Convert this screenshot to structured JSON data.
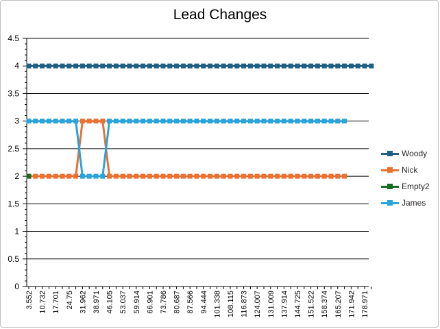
{
  "chart_data": {
    "type": "line",
    "title": "Lead Changes",
    "xlabel": "",
    "ylabel": "",
    "ylim": [
      0,
      4.5
    ],
    "y_ticks": [
      "0",
      "0.5",
      "1",
      "1.5",
      "2",
      "2.5",
      "3",
      "3.5",
      "4",
      "4.5"
    ],
    "x_tick_labels": [
      "3.552",
      "10.732",
      "17.701",
      "24.75",
      "31.962",
      "38.971",
      "46.105",
      "53.037",
      "59.914",
      "66.901",
      "73.786",
      "80.687",
      "87.566",
      "94.444",
      "101.338",
      "108.115",
      "116.873",
      "124.007",
      "131.009",
      "137.914",
      "144.725",
      "151.522",
      "158.374",
      "165.207",
      "171.942",
      "178.971"
    ],
    "grid": true,
    "legend_position": "right",
    "series": [
      {
        "name": "Woody",
        "color": "#1f5f83",
        "values": [
          4,
          4,
          4,
          4,
          4,
          4,
          4,
          4,
          4,
          4,
          4,
          4,
          4,
          4,
          4,
          4,
          4,
          4,
          4,
          4,
          4,
          4,
          4,
          4,
          4,
          4,
          4,
          4,
          4,
          4,
          4,
          4,
          4,
          4,
          4,
          4,
          4,
          4,
          4,
          4,
          4,
          4,
          4,
          4,
          4,
          4,
          4,
          4,
          4,
          4,
          4,
          4
        ]
      },
      {
        "name": "Nick",
        "color": "#e97132",
        "values": [
          2,
          2,
          2,
          2,
          2,
          2,
          2,
          2,
          3,
          3,
          3,
          3,
          2,
          2,
          2,
          2,
          2,
          2,
          2,
          2,
          2,
          2,
          2,
          2,
          2,
          2,
          2,
          2,
          2,
          2,
          2,
          2,
          2,
          2,
          2,
          2,
          2,
          2,
          2,
          2,
          2,
          2,
          2,
          2,
          2,
          2,
          2,
          2
        ]
      },
      {
        "name": "Empty2",
        "color": "#196b24",
        "values": [
          2
        ]
      },
      {
        "name": "James",
        "color": "#2aa2db",
        "values": [
          3,
          3,
          3,
          3,
          3,
          3,
          3,
          3,
          2,
          2,
          2,
          2,
          3,
          3,
          3,
          3,
          3,
          3,
          3,
          3,
          3,
          3,
          3,
          3,
          3,
          3,
          3,
          3,
          3,
          3,
          3,
          3,
          3,
          3,
          3,
          3,
          3,
          3,
          3,
          3,
          3,
          3,
          3,
          3,
          3,
          3,
          3,
          3
        ]
      }
    ]
  }
}
